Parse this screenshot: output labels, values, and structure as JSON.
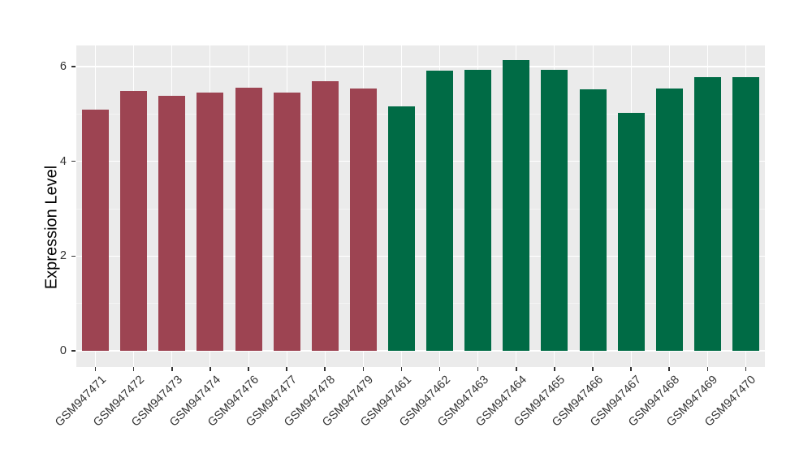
{
  "figure": {
    "background": "#FFFFFF",
    "panel_background": "#EBEBEB",
    "grid_major_color": "#FFFFFF",
    "grid_minor_color": "#F4F4F4",
    "tick_color": "#333333",
    "axis_text_color": "#333333",
    "axis_title_color": "#000000"
  },
  "chart_data": {
    "type": "bar",
    "title": "",
    "xlabel": "",
    "ylabel": "Expression Level",
    "ylim": [
      0,
      6.45
    ],
    "yticks": [
      0,
      2,
      4,
      6
    ],
    "yminor": [
      1,
      3,
      5
    ],
    "grid": "on",
    "legend": "none",
    "categories": [
      "GSM947471",
      "GSM947472",
      "GSM947473",
      "GSM947474",
      "GSM947476",
      "GSM947477",
      "GSM947478",
      "GSM947479",
      "GSM947461",
      "GSM947462",
      "GSM947463",
      "GSM947464",
      "GSM947465",
      "GSM947466",
      "GSM947467",
      "GSM947468",
      "GSM947469",
      "GSM947470"
    ],
    "values": [
      5.09,
      5.48,
      5.38,
      5.46,
      5.55,
      5.46,
      5.7,
      5.54,
      5.16,
      5.91,
      5.94,
      6.13,
      5.93,
      5.52,
      5.03,
      5.54,
      5.78,
      5.78
    ],
    "groups": [
      "maroon",
      "maroon",
      "maroon",
      "maroon",
      "maroon",
      "maroon",
      "maroon",
      "maroon",
      "green",
      "green",
      "green",
      "green",
      "green",
      "green",
      "green",
      "green",
      "green",
      "green"
    ],
    "group_colors": {
      "maroon": "#9D4452",
      "green": "#006B45"
    }
  }
}
